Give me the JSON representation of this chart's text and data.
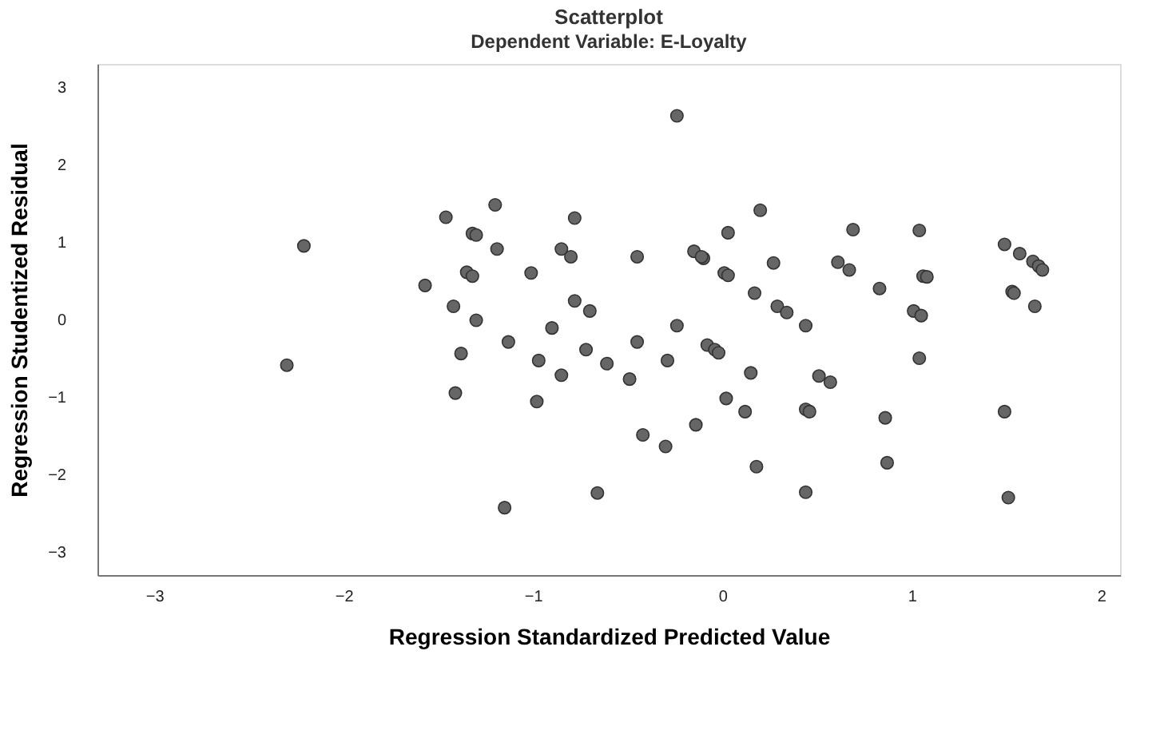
{
  "chart_data": {
    "type": "scatter",
    "title": "Scatterplot",
    "subtitle": "Dependent Variable: E-Loyalty",
    "xlabel": "Regression Standardized Predicted Value",
    "ylabel": "Regression Studentized Residual",
    "xlim": [
      -3.3,
      2.1
    ],
    "ylim": [
      -3.3,
      3.3
    ],
    "xticks": [
      -3,
      -2,
      -1,
      0,
      1,
      2
    ],
    "yticks": [
      -3,
      -2,
      -1,
      0,
      1,
      2,
      3
    ],
    "grid": false,
    "marker": "circle",
    "series": [
      {
        "color": "#666666",
        "x": [
          -2.3,
          -2.21,
          -1.57,
          -1.46,
          -1.2,
          -1.32,
          -1.3,
          -1.19,
          -1.35,
          -1.32,
          -1.42,
          -1.3,
          -1.38,
          -1.41,
          -1.13,
          -1.01,
          -0.97,
          -0.98,
          -1.15,
          -0.85,
          -0.8,
          -0.78,
          -0.9,
          -0.78,
          -0.7,
          -0.72,
          -0.85,
          -0.61,
          -0.66,
          -0.49,
          -0.45,
          -0.45,
          -0.42,
          -0.3,
          -0.29,
          -0.24,
          -0.24,
          -0.15,
          -0.1,
          -0.11,
          -0.08,
          -0.04,
          -0.02,
          -0.14,
          0.03,
          0.01,
          0.03,
          0.17,
          0.02,
          0.15,
          0.12,
          0.18,
          0.2,
          0.27,
          0.29,
          0.34,
          0.44,
          0.69,
          0.61,
          0.67,
          0.83,
          0.51,
          0.57,
          0.44,
          0.46,
          0.44,
          0.86,
          0.87,
          1.04,
          1.06,
          1.08,
          1.01,
          1.05,
          1.04,
          1.49,
          1.57,
          1.64,
          1.67,
          1.69,
          1.53,
          1.54,
          1.65,
          1.49,
          1.51
        ],
        "values": [
          -0.59,
          0.95,
          0.44,
          1.32,
          1.48,
          1.11,
          1.09,
          0.91,
          0.61,
          0.56,
          0.17,
          -0.01,
          -0.44,
          -0.95,
          -0.29,
          0.6,
          -0.53,
          -1.06,
          -2.43,
          0.91,
          0.81,
          1.31,
          -0.11,
          0.24,
          0.11,
          -0.39,
          -0.72,
          -0.57,
          -2.24,
          -0.77,
          0.81,
          -0.29,
          -1.49,
          -1.64,
          -0.53,
          -0.08,
          2.63,
          0.88,
          0.79,
          0.81,
          -0.33,
          -0.39,
          -0.43,
          -1.36,
          1.12,
          0.6,
          0.57,
          0.34,
          -1.02,
          -0.69,
          -1.19,
          -1.9,
          1.41,
          0.73,
          0.17,
          0.09,
          -0.08,
          1.16,
          0.74,
          0.64,
          0.4,
          -0.73,
          -0.81,
          -1.16,
          -1.19,
          -2.23,
          -1.27,
          -1.85,
          1.15,
          0.56,
          0.55,
          0.11,
          0.05,
          -0.5,
          0.97,
          0.85,
          0.75,
          0.69,
          0.64,
          0.36,
          0.34,
          0.17,
          -1.19,
          -2.3
        ]
      }
    ]
  }
}
